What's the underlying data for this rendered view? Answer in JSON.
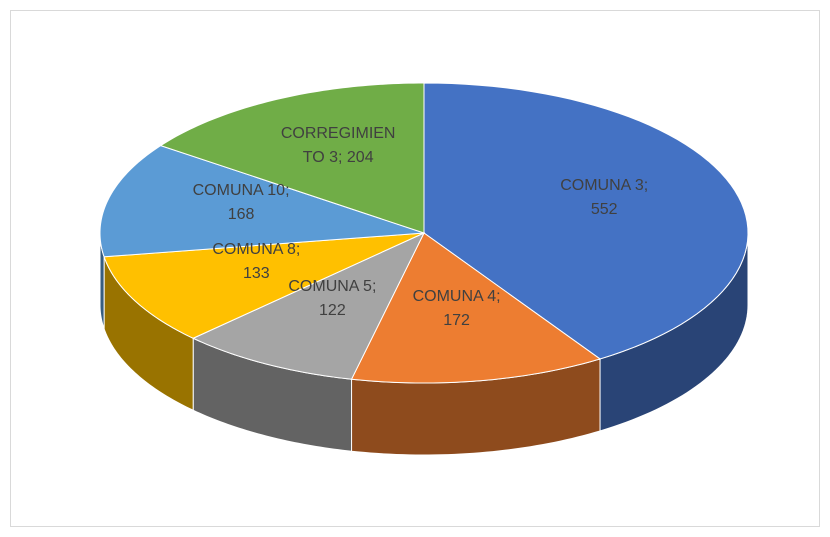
{
  "chart_data": {
    "type": "pie3d",
    "categories": [
      "COMUNA 3",
      "COMUNA 4",
      "COMUNA 5",
      "COMUNA 8",
      "COMUNA 10",
      "CORREGIMIENTO 3"
    ],
    "values": [
      552,
      172,
      122,
      133,
      168,
      204
    ],
    "colors": [
      "#4472c4",
      "#ed7d31",
      "#a5a5a5",
      "#ffc000",
      "#5b9bd5",
      "#70ad47"
    ],
    "label_separator": "; "
  }
}
